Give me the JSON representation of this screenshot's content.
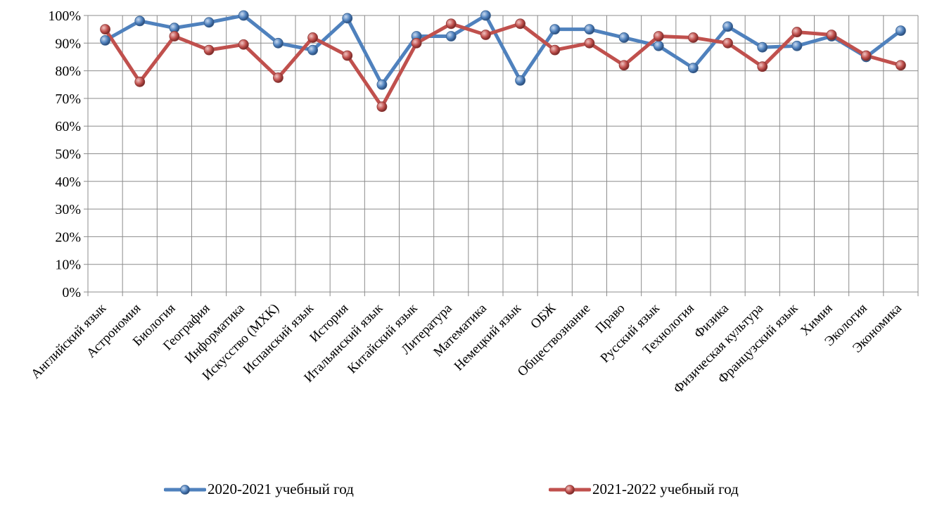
{
  "chart_data": {
    "type": "line",
    "categories": [
      "Английский язык",
      "Астрономия",
      "Биология",
      "География",
      "Информатика",
      "Искусство (МХК)",
      "Испанский язык",
      "История",
      "Итальянский язык",
      "Китайский язык",
      "Литература",
      "Математика",
      "Немецкий язык",
      "ОБЖ",
      "Обществознание",
      "Право",
      "Русский язык",
      "Технология",
      "Физика",
      "Физическая культура",
      "Французский язык",
      "Химия",
      "Экология",
      "Экономика"
    ],
    "series": [
      {
        "name": "2020-2021 учебный год",
        "color": "#4f81bd",
        "values": [
          91,
          98,
          95.5,
          97.5,
          100,
          90,
          87.5,
          99,
          75,
          92.5,
          92.5,
          100,
          76.5,
          95,
          95,
          92,
          89,
          81,
          96,
          88.5,
          89,
          92.5,
          85,
          94.5
        ]
      },
      {
        "name": "2021-2022 учебный год",
        "color": "#c0504d",
        "values": [
          95,
          76,
          92.5,
          87.5,
          89.5,
          77.5,
          92,
          85.5,
          67,
          90,
          97,
          93,
          97,
          87.5,
          90,
          82,
          92.5,
          92,
          90,
          81.5,
          94,
          93,
          85.5,
          82
        ]
      }
    ],
    "ylim": [
      0,
      100
    ],
    "yticks": [
      "0%",
      "10%",
      "20%",
      "30%",
      "40%",
      "50%",
      "60%",
      "70%",
      "80%",
      "90%",
      "100%"
    ],
    "grid": true,
    "legend_position": "bottom"
  }
}
